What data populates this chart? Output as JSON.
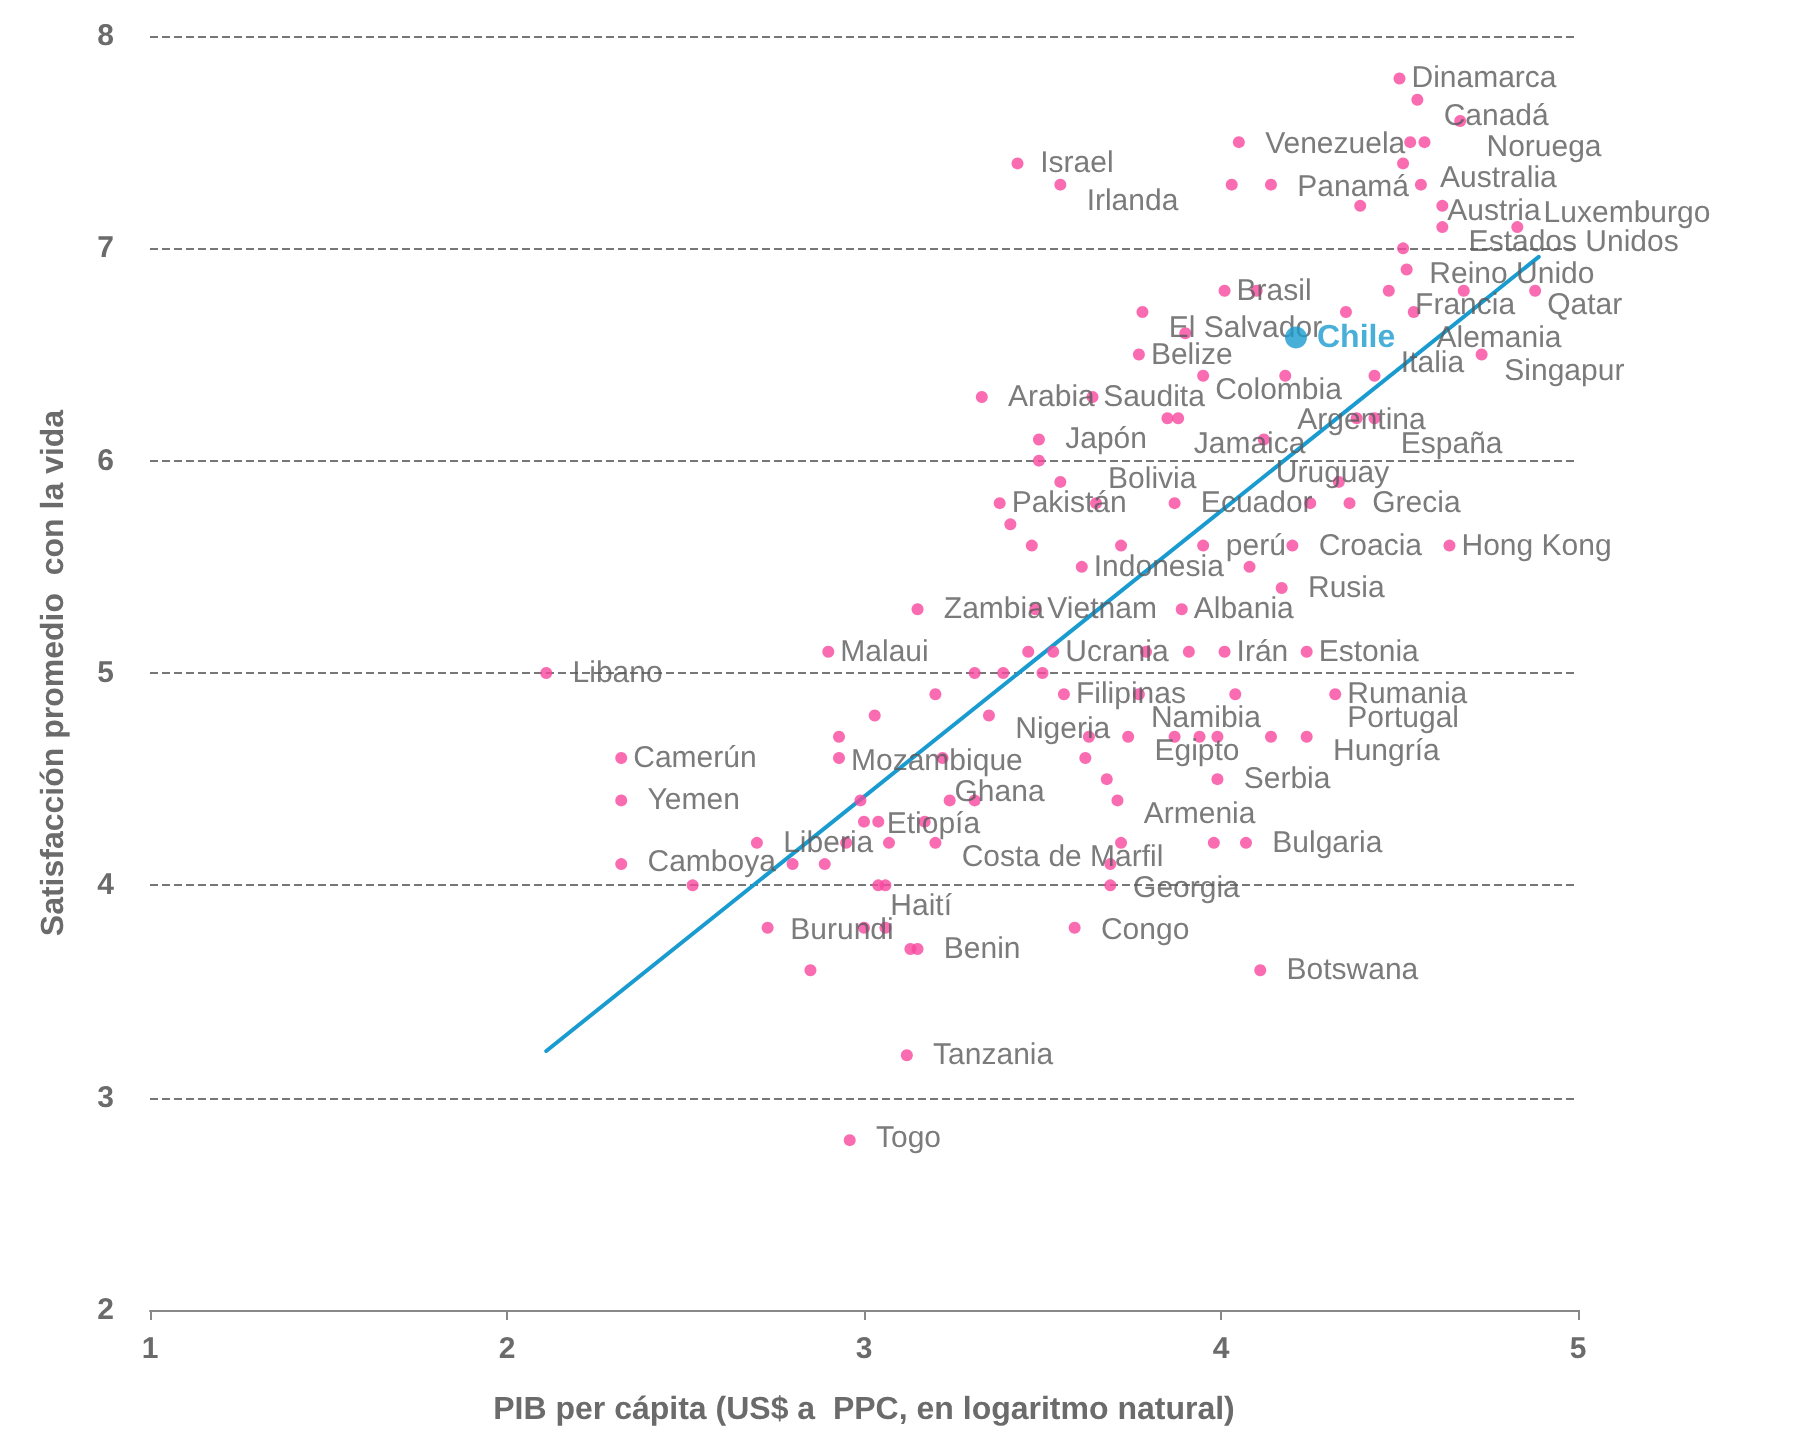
{
  "chart_data": {
    "type": "scatter",
    "xlabel": "PIB per cápita (US$ a  PPC, en logaritmo natural)",
    "ylabel": "Satisfacción promedio  con la vida",
    "xlim": [
      1,
      5
    ],
    "xticks": [
      1,
      2,
      3,
      4,
      5
    ],
    "ylim": [
      2,
      8
    ],
    "yticks": [
      2,
      3,
      4,
      5,
      6,
      7,
      8
    ],
    "grid": "y",
    "marker": "circle",
    "series": [
      {
        "color": "#f7479f",
        "x": [
          4.5,
          4.55,
          4.67,
          4.05,
          4.53,
          4.57,
          3.43,
          4.51,
          3.55,
          4.03,
          4.14,
          4.56,
          4.39,
          4.62,
          4.62,
          4.83,
          4.51,
          4.52,
          4.01,
          4.1,
          4.47,
          4.68,
          4.88,
          3.78,
          4.35,
          4.54,
          3.9,
          3.77,
          4.73,
          3.95,
          4.18,
          4.43,
          3.33,
          3.64,
          3.85,
          3.88,
          4.38,
          4.43,
          3.49,
          4.12,
          3.49,
          3.55,
          4.33,
          3.38,
          3.65,
          3.87,
          4.25,
          4.36,
          3.41,
          3.47,
          3.72,
          3.95,
          4.2,
          4.64,
          3.61,
          4.08,
          4.17,
          3.15,
          3.48,
          3.89,
          2.9,
          3.46,
          3.53,
          3.79,
          3.91,
          4.01,
          4.24,
          2.11,
          3.31,
          3.39,
          3.5,
          3.2,
          3.56,
          3.77,
          4.04,
          4.32,
          3.03,
          3.35,
          2.93,
          3.63,
          3.74,
          3.87,
          3.94,
          3.99,
          4.14,
          4.24,
          2.32,
          2.93,
          3.22,
          3.62,
          3.68,
          3.99,
          2.32,
          2.99,
          3.24,
          3.31,
          3.71,
          3.0,
          3.04,
          3.17,
          2.7,
          2.95,
          3.07,
          3.2,
          3.72,
          3.98,
          4.07,
          2.32,
          2.8,
          2.89,
          3.69,
          2.52,
          3.04,
          3.06,
          3.69,
          2.73,
          3.0,
          3.06,
          3.59,
          3.13,
          3.15,
          2.85,
          4.11,
          3.12,
          2.96
        ],
        "values": [
          7.8,
          7.7,
          7.6,
          7.5,
          7.5,
          7.5,
          7.4,
          7.4,
          7.3,
          7.3,
          7.3,
          7.3,
          7.2,
          7.2,
          7.1,
          7.1,
          7.0,
          6.9,
          6.8,
          6.8,
          6.8,
          6.8,
          6.8,
          6.7,
          6.7,
          6.7,
          6.6,
          6.5,
          6.5,
          6.4,
          6.4,
          6.4,
          6.3,
          6.3,
          6.2,
          6.2,
          6.2,
          6.2,
          6.1,
          6.1,
          6.0,
          5.9,
          5.9,
          5.8,
          5.8,
          5.8,
          5.8,
          5.8,
          5.7,
          5.6,
          5.6,
          5.6,
          5.6,
          5.6,
          5.5,
          5.5,
          5.4,
          5.3,
          5.3,
          5.3,
          5.1,
          5.1,
          5.1,
          5.1,
          5.1,
          5.1,
          5.1,
          5.0,
          5.0,
          5.0,
          5.0,
          4.9,
          4.9,
          4.9,
          4.9,
          4.9,
          4.8,
          4.8,
          4.7,
          4.7,
          4.7,
          4.7,
          4.7,
          4.7,
          4.7,
          4.7,
          4.6,
          4.6,
          4.6,
          4.6,
          4.5,
          4.5,
          4.4,
          4.4,
          4.4,
          4.4,
          4.4,
          4.3,
          4.3,
          4.3,
          4.2,
          4.2,
          4.2,
          4.2,
          4.2,
          4.2,
          4.2,
          4.1,
          4.1,
          4.1,
          4.1,
          4.0,
          4.0,
          4.0,
          4.0,
          3.8,
          3.8,
          3.8,
          3.8,
          3.7,
          3.7,
          3.6,
          3.6,
          3.2,
          2.8
        ]
      },
      {
        "name": "Chile",
        "color": "#1a9bd0",
        "x": [
          4.21
        ],
        "values": [
          6.58
        ]
      },
      {
        "type": "line",
        "color": "#1a9bd0",
        "marker": "none",
        "line_style": "solid",
        "x": [
          2.11,
          4.89
        ],
        "values": [
          3.22,
          6.96
        ]
      }
    ],
    "annotations": [
      {
        "text": "Dinamarca",
        "x": 4.5,
        "y": 7.8
      },
      {
        "text": "Canadá",
        "x": 4.59,
        "y": 7.69
      },
      {
        "text": "Noruega",
        "x": 4.71,
        "y": 7.59
      },
      {
        "text": "Venezuela",
        "x": 4.09,
        "y": 7.49
      },
      {
        "text": "Australia",
        "x": 4.58,
        "y": 7.49
      },
      {
        "text": "Israel",
        "x": 3.46,
        "y": 7.4
      },
      {
        "text": "Irlanda",
        "x": 3.59,
        "y": 7.29
      },
      {
        "text": "Panamá",
        "x": 4.18,
        "y": 7.29
      },
      {
        "text": "Austria",
        "x": 4.6,
        "y": 7.29
      },
      {
        "text": "Estados Unidos",
        "x": 4.66,
        "y": 7.19
      },
      {
        "text": "Luxemburgo",
        "x": 4.87,
        "y": 7.1
      },
      {
        "text": "Reino Unido",
        "x": 4.55,
        "y": 6.99
      },
      {
        "text": "Brasil",
        "x": 4.01,
        "y": 6.8
      },
      {
        "text": "Francia",
        "x": 4.51,
        "y": 6.8
      },
      {
        "text": "Qatar",
        "x": 4.88,
        "y": 6.8
      },
      {
        "text": "El Salvador",
        "x": 3.82,
        "y": 6.69
      },
      {
        "text": "Alemania",
        "x": 4.57,
        "y": 6.69
      },
      {
        "text": "Belize",
        "x": 3.77,
        "y": 6.5
      },
      {
        "text": "Italia",
        "x": 4.47,
        "y": 6.46
      },
      {
        "text": "Singapur",
        "x": 4.76,
        "y": 6.49
      },
      {
        "text": "Colombia",
        "x": 3.95,
        "y": 6.4
      },
      {
        "text": "Argentina",
        "x": 4.18,
        "y": 6.4
      },
      {
        "text": "Arabia Saudita",
        "x": 3.37,
        "y": 6.3
      },
      {
        "text": "Jamaica",
        "x": 3.89,
        "y": 6.19
      },
      {
        "text": "España",
        "x": 4.47,
        "y": 6.19
      },
      {
        "text": "Japón",
        "x": 3.53,
        "y": 6.1
      },
      {
        "text": "Uruguay",
        "x": 4.12,
        "y": 6.1
      },
      {
        "text": "Pakistán",
        "x": 3.38,
        "y": 5.8
      },
      {
        "text": "Bolivia",
        "x": 3.65,
        "y": 5.8
      },
      {
        "text": "Ecuador",
        "x": 3.91,
        "y": 5.8
      },
      {
        "text": "Grecia",
        "x": 4.39,
        "y": 5.8
      },
      {
        "text": "perú",
        "x": 3.98,
        "y": 5.6
      },
      {
        "text": "Croacia",
        "x": 4.24,
        "y": 5.6
      },
      {
        "text": "Hong Kong",
        "x": 4.64,
        "y": 5.6
      },
      {
        "text": "Indonesia",
        "x": 3.61,
        "y": 5.5
      },
      {
        "text": "Rusia",
        "x": 4.21,
        "y": 5.4
      },
      {
        "text": "Zambia",
        "x": 3.19,
        "y": 5.3
      },
      {
        "text": "Vietnam",
        "x": 3.48,
        "y": 5.3
      },
      {
        "text": "Albania",
        "x": 3.89,
        "y": 5.3
      },
      {
        "text": "Malaui",
        "x": 2.9,
        "y": 5.1
      },
      {
        "text": "Ucrania",
        "x": 3.53,
        "y": 5.1
      },
      {
        "text": "Irán",
        "x": 4.01,
        "y": 5.1
      },
      {
        "text": "Estonia",
        "x": 4.24,
        "y": 5.1
      },
      {
        "text": "Libano",
        "x": 2.15,
        "y": 5.0
      },
      {
        "text": "Rumania",
        "x": 4.32,
        "y": 4.9
      },
      {
        "text": "Filipinas",
        "x": 3.56,
        "y": 4.9
      },
      {
        "text": "Namibia",
        "x": 3.77,
        "y": 4.9
      },
      {
        "text": "Portugal",
        "x": 4.32,
        "y": 4.9
      },
      {
        "text": "Nigeria",
        "x": 3.39,
        "y": 4.8
      },
      {
        "text": "Mozambique",
        "x": 2.93,
        "y": 4.7
      },
      {
        "text": "Egipto",
        "x": 3.78,
        "y": 4.7
      },
      {
        "text": "Hungría",
        "x": 4.28,
        "y": 4.7
      },
      {
        "text": "Camerún",
        "x": 2.32,
        "y": 4.6
      },
      {
        "text": "Ghana",
        "x": 3.22,
        "y": 4.6
      },
      {
        "text": "Serbia",
        "x": 4.03,
        "y": 4.5
      },
      {
        "text": "Yemen",
        "x": 2.36,
        "y": 4.4
      },
      {
        "text": "Etiopía",
        "x": 3.03,
        "y": 4.4
      },
      {
        "text": "Armenia",
        "x": 3.75,
        "y": 4.4
      },
      {
        "text": "Liberia",
        "x": 2.74,
        "y": 4.2
      },
      {
        "text": "Costa de Marfil",
        "x": 3.24,
        "y": 4.2
      },
      {
        "text": "Bulgaria",
        "x": 4.11,
        "y": 4.2
      },
      {
        "text": "Camboya",
        "x": 2.36,
        "y": 4.11
      },
      {
        "text": "Georgia",
        "x": 3.72,
        "y": 4.1
      },
      {
        "text": "Burundi",
        "x": 2.76,
        "y": 3.79
      },
      {
        "text": "Haití",
        "x": 3.04,
        "y": 3.79
      },
      {
        "text": "Congo",
        "x": 3.63,
        "y": 3.79
      },
      {
        "text": "Benin",
        "x": 3.19,
        "y": 3.7
      },
      {
        "text": "Botswana",
        "x": 4.15,
        "y": 3.6
      },
      {
        "text": "Tanzania",
        "x": 3.16,
        "y": 3.2
      },
      {
        "text": "Togo",
        "x": 3.0,
        "y": 2.81
      }
    ]
  }
}
